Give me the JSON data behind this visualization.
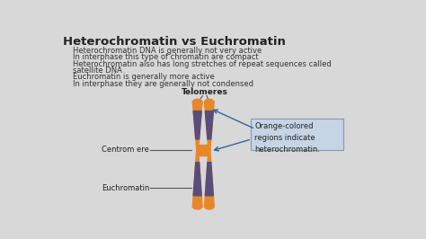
{
  "title": "Heterochromatin vs Euchromatin",
  "bg_color": "#d8d8d8",
  "title_color": "#222222",
  "title_fontsize": 9.5,
  "bullet_fontsize": 6.0,
  "bullets": [
    "Heterochromatin DNA is generally not very active",
    "In interphase this type of chromatin are compact",
    "Heterochromatin also has long stretches of repeat sequences called\nsatellite DNA",
    "Euchromatin is generally more active",
    "In interphase they are generally not condensed"
  ],
  "bullet_color": "#333333",
  "orange_color": "#E8872A",
  "purple_color": "#5a4d7c",
  "label_color": "#222222",
  "box_bg": "#c5d5e5",
  "box_border": "#8899aa",
  "box_text": "Orange-colored\nregions indicate\nheterochromatin.",
  "telomere_label": "Telomeres",
  "centromere_label": "Centrom ere",
  "euchromatin_label": "Euchromatin"
}
